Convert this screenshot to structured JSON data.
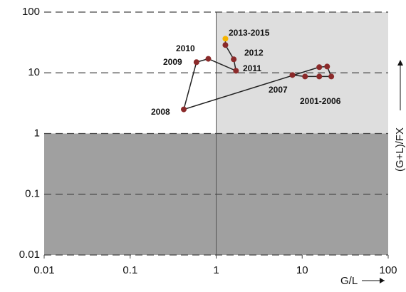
{
  "chart_data": {
    "type": "scatter",
    "x_label": "G/L",
    "y_label": "(G+L)/FX",
    "xscale": "log",
    "yscale": "log",
    "xlim": [
      0.01,
      100
    ],
    "ylim": [
      0.01,
      100
    ],
    "xticks": [
      0.01,
      0.1,
      1,
      10,
      100
    ],
    "yticks": [
      0.01,
      0.1,
      1,
      10,
      100
    ],
    "grid": true,
    "shading": {
      "x_threshold": 1,
      "y_threshold": 1,
      "upper_right_color": "#dedede",
      "lower_color": "#a0a0a0"
    },
    "series": [
      {
        "color": "#8b2a2a",
        "line_color": "#222222",
        "highlight_color": "#f5b400",
        "highlight_index": 12,
        "x": [
          7.7,
          10.8,
          15.8,
          21.8,
          19.5,
          15.8,
          0.42,
          0.59,
          0.81,
          1.7,
          1.6,
          1.28,
          1.28
        ],
        "y": [
          9.2,
          8.7,
          8.7,
          8.7,
          12.7,
          12.4,
          2.5,
          15,
          17,
          10.8,
          16.7,
          28.7,
          36.5
        ]
      }
    ],
    "annotations": [
      "2013-2015",
      "2012",
      "2011",
      "2010",
      "2009",
      "2008",
      "2007",
      "2001-2006"
    ]
  }
}
